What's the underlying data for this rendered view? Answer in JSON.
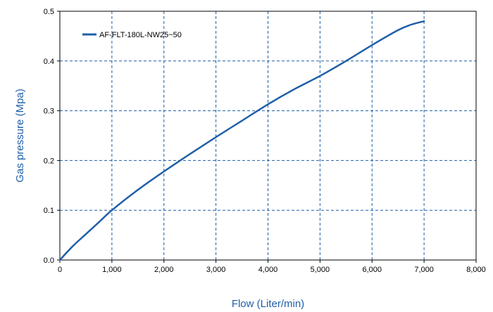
{
  "chart_data": {
    "type": "line",
    "title": "",
    "xlabel": "Flow (Liter/min)",
    "ylabel": "Gas pressure (Mpa)",
    "xlim": [
      0,
      8000
    ],
    "ylim": [
      0,
      0.5
    ],
    "x_ticks": [
      "0",
      "1,000",
      "2,000",
      "3,000",
      "4,000",
      "5,000",
      "6,000",
      "7,000",
      "8,000"
    ],
    "y_ticks": [
      "0.0",
      "0.1",
      "0.2",
      "0.3",
      "0.4",
      "0.5"
    ],
    "grid": true,
    "legend_position": "top-left",
    "series": [
      {
        "name": "AF-FLT-180L-NW25~50",
        "color": "#1f5fa8",
        "x": [
          0,
          250,
          500,
          750,
          1000,
          1500,
          2000,
          2500,
          3000,
          3500,
          4000,
          4500,
          5000,
          5500,
          6000,
          6500,
          6750,
          7000
        ],
        "y": [
          0,
          0.028,
          0.052,
          0.076,
          0.1,
          0.141,
          0.178,
          0.213,
          0.247,
          0.28,
          0.313,
          0.343,
          0.37,
          0.4,
          0.432,
          0.462,
          0.473,
          0.48
        ]
      }
    ]
  }
}
